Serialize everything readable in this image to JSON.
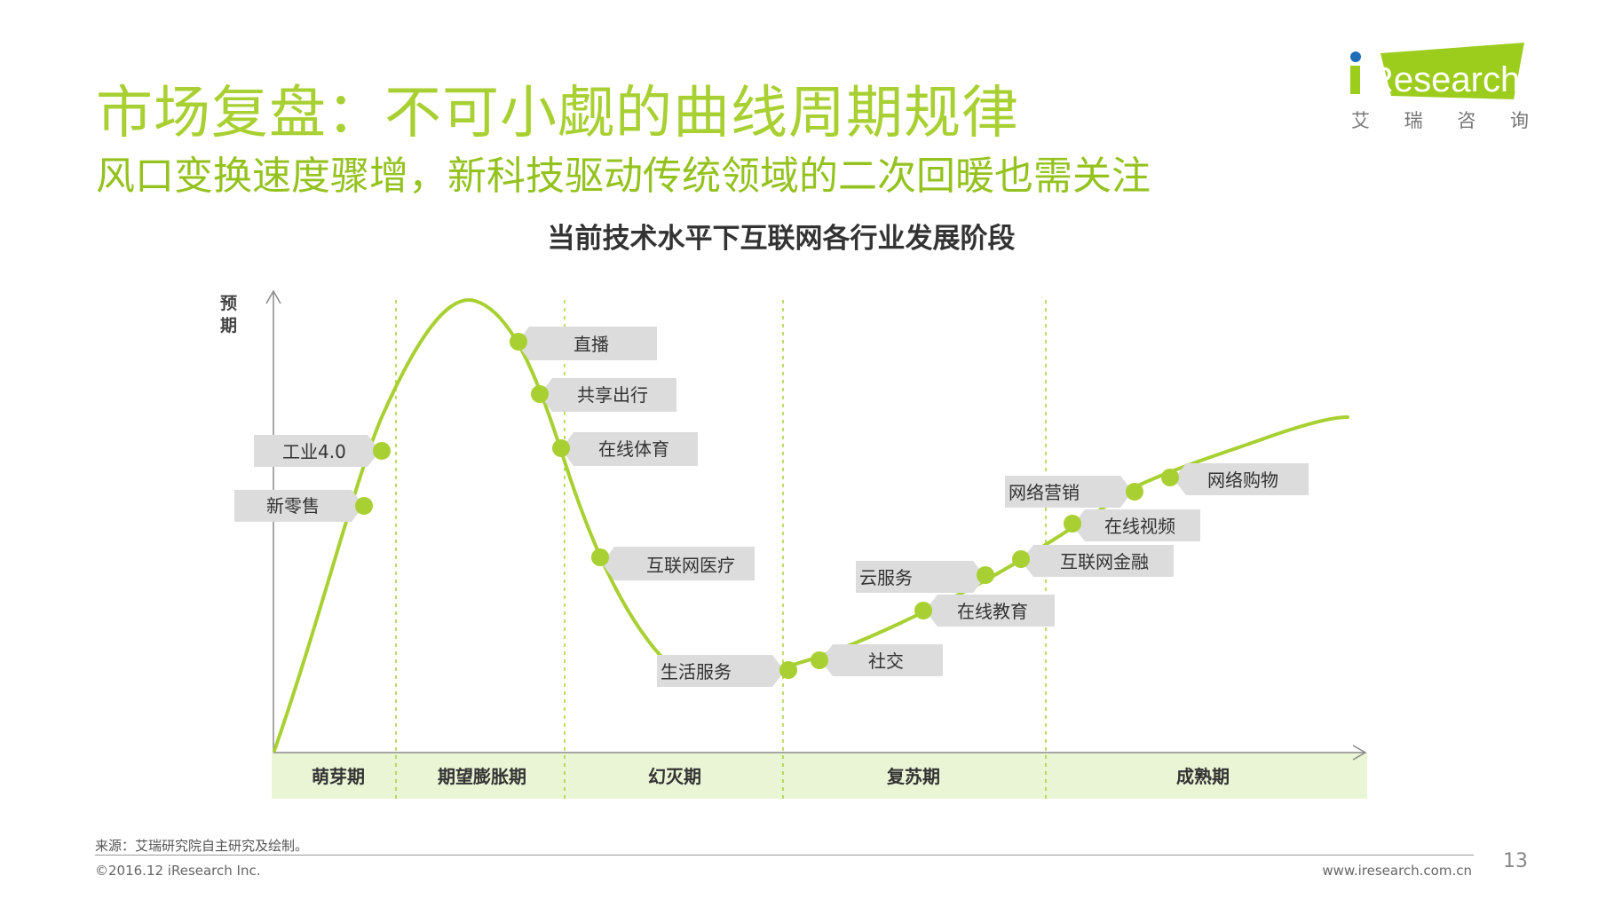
{
  "header": {
    "title": "市场复盘：不可小觑的曲线周期规律",
    "subtitle": "风口变换速度骤增，新科技驱动传统领域的二次回暖也需关注"
  },
  "logo": {
    "brand": "Research",
    "brand_prefix": "i",
    "chinese_chars": [
      "艾",
      "瑞",
      "咨",
      "询"
    ],
    "color": "#9ccc1c"
  },
  "diagram": {
    "title": "当前技术水平下互联网各行业发展阶段",
    "y_axis_label": "预期",
    "phases": [
      "萌芽期",
      "期望膨胀期",
      "幻灭期",
      "复苏期",
      "成熟期"
    ],
    "items": [
      "新零售",
      "工业4.0",
      "直播",
      "共享出行",
      "在线体育",
      "互联网医疗",
      "生活服务",
      "社交",
      "在线教育",
      "云服务",
      "互联网金融",
      "在线视频",
      "网络营销",
      "网络购物"
    ],
    "colors": {
      "curve": "#a8d032",
      "label_box": "#dcdcdc",
      "phase_band": "#eaf5d6",
      "axis": "#8a8a8a"
    }
  },
  "footer": {
    "source": "来源：艾瑞研究院自主研究及绘制。",
    "copyright": "©2016.12 iResearch Inc.",
    "website": "www.iresearch.com.cn",
    "page": "13"
  }
}
